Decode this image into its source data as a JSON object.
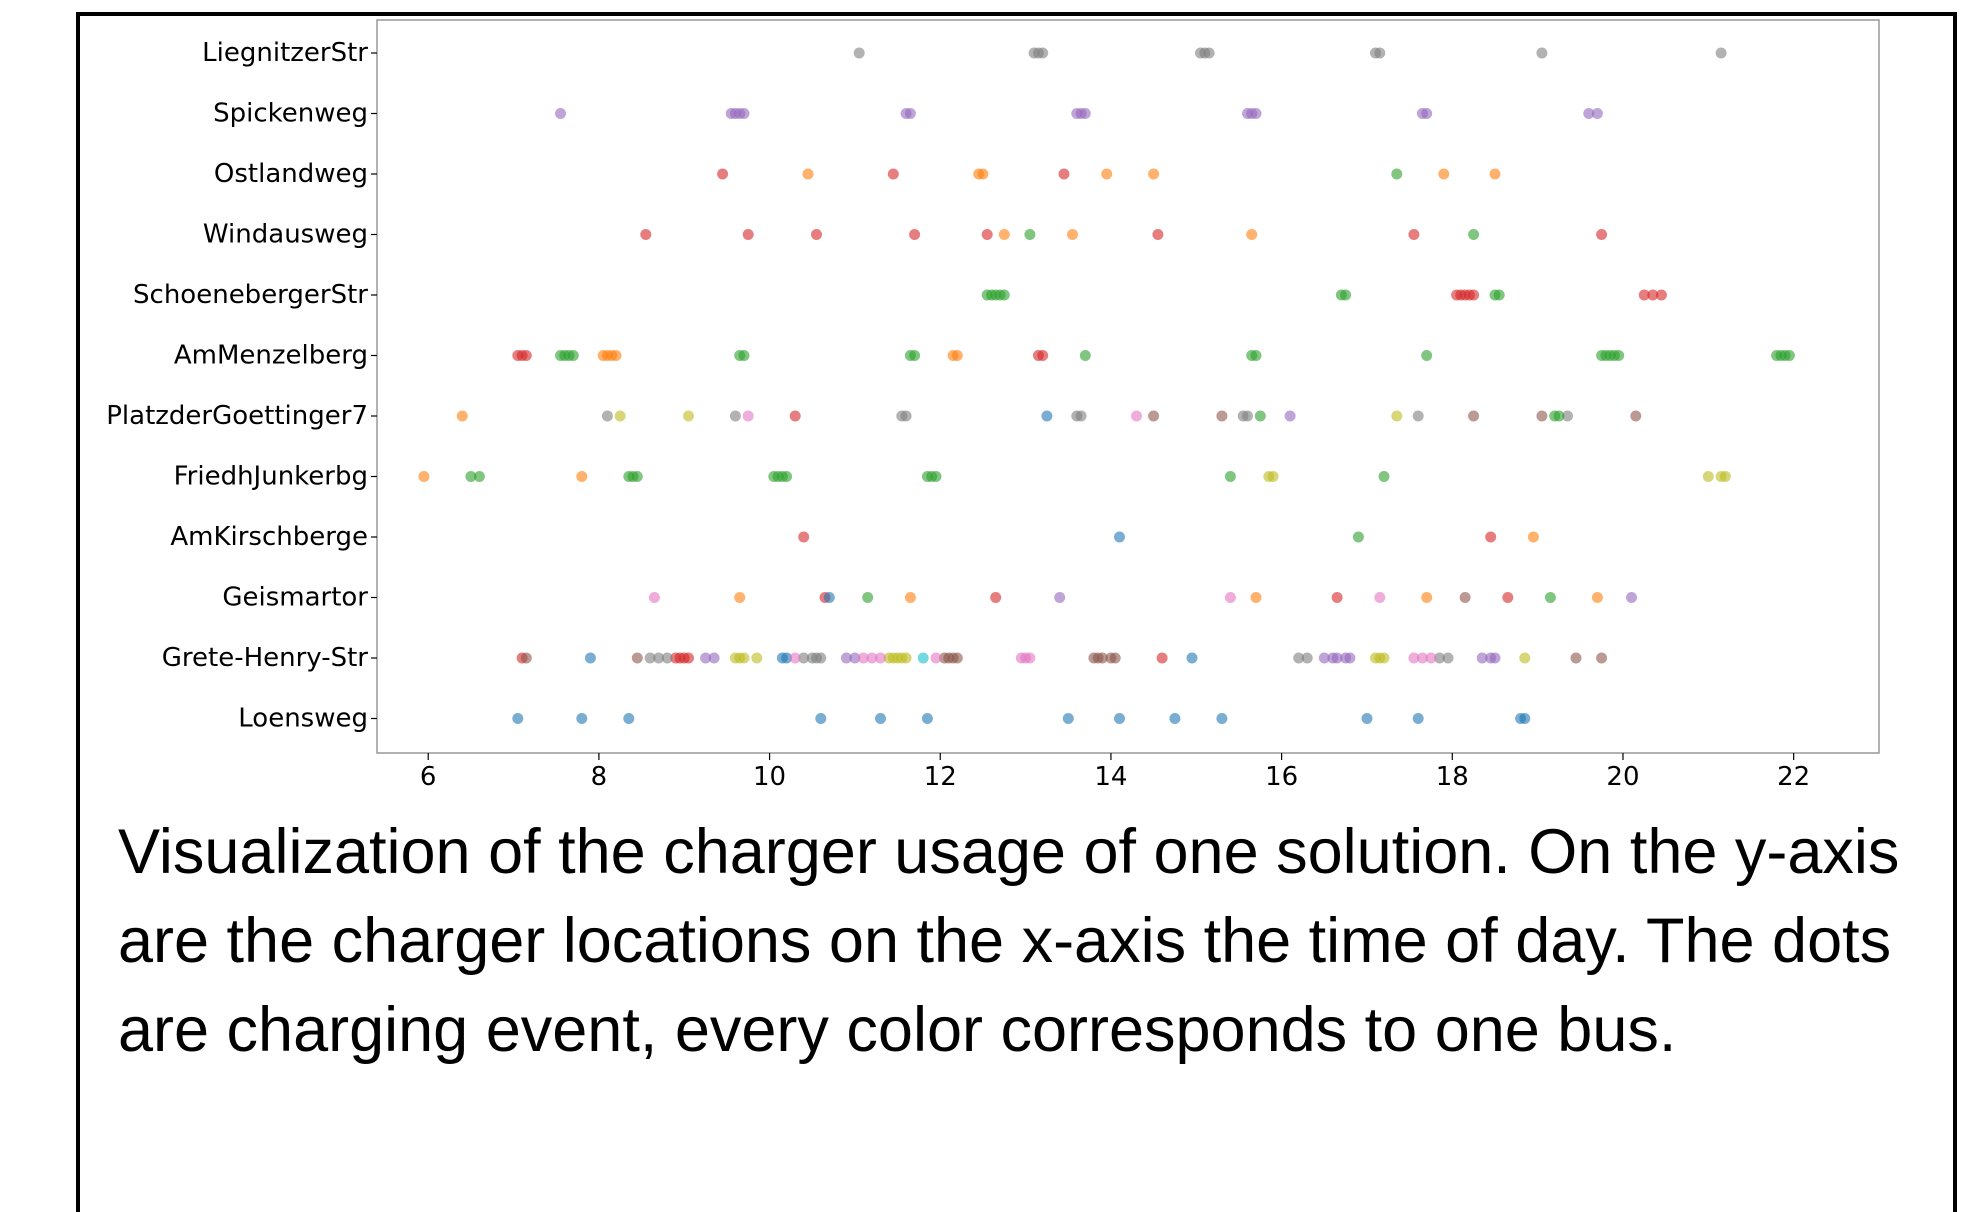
{
  "caption": "Visualization of the charger usage of one solution. On the y-axis are the charger locations on the x-axis the time of day. The dots are charging event, every color corresponds to one bus.",
  "chart_data": {
    "type": "scatter",
    "title": "",
    "xlabel": "",
    "ylabel": "",
    "xlim": [
      5.4,
      23.0
    ],
    "x_ticks": [
      "6",
      "8",
      "10",
      "12",
      "14",
      "16",
      "18",
      "20",
      "22"
    ],
    "grid": false,
    "legend": "none",
    "categories": [
      "LiegnitzerStr",
      "Spickenweg",
      "Ostlandweg",
      "Windausweg",
      "SchoenebergerStr",
      "AmMenzelberg",
      "PlatzderGoettinger7",
      "FriedhJunkerbg",
      "AmKirschberge",
      "Geismartor",
      "Grete-Henry-Str",
      "Loensweg"
    ],
    "colors": {
      "blue": "#1f77b4",
      "orange": "#ff7f0e",
      "green": "#2ca02c",
      "red": "#d62728",
      "purple": "#9467bd",
      "brown": "#8c564b",
      "pink": "#e377c2",
      "gray": "#7f7f7f",
      "olive": "#bcbd22",
      "cyan": "#17becf"
    },
    "points": [
      {
        "y": "LiegnitzerStr",
        "x": [
          11.05,
          13.1,
          13.15,
          13.2,
          15.05,
          15.1,
          15.15,
          17.1,
          17.15,
          19.05,
          21.15
        ],
        "color": "gray"
      },
      {
        "y": "Spickenweg",
        "x": [
          7.55,
          9.55,
          9.6,
          9.65,
          9.7,
          11.6,
          11.65,
          13.6,
          13.65,
          13.7,
          15.6,
          15.65,
          15.7,
          17.65,
          17.7,
          19.6,
          19.7
        ],
        "color": "purple"
      },
      {
        "y": "Ostlandweg",
        "x": [
          9.45,
          11.45,
          13.45
        ],
        "color": "red"
      },
      {
        "y": "Ostlandweg",
        "x": [
          10.45,
          12.45,
          12.5,
          13.95,
          14.5,
          17.9,
          18.5
        ],
        "color": "orange"
      },
      {
        "y": "Ostlandweg",
        "x": [
          17.35
        ],
        "color": "green"
      },
      {
        "y": "Windausweg",
        "x": [
          8.55,
          9.75,
          10.55,
          11.7,
          12.55,
          14.55,
          17.55,
          19.75
        ],
        "color": "red"
      },
      {
        "y": "Windausweg",
        "x": [
          12.75,
          13.55,
          15.65
        ],
        "color": "orange"
      },
      {
        "y": "Windausweg",
        "x": [
          13.05,
          18.25
        ],
        "color": "green"
      },
      {
        "y": "SchoenebergerStr",
        "x": [
          12.55,
          12.6,
          12.65,
          12.7,
          12.75,
          16.7,
          16.75,
          18.5,
          18.55
        ],
        "color": "green"
      },
      {
        "y": "SchoenebergerStr",
        "x": [
          18.05,
          18.1,
          18.15,
          18.2,
          18.25,
          20.25,
          20.35,
          20.45
        ],
        "color": "red"
      },
      {
        "y": "AmMenzelberg",
        "x": [
          7.05,
          7.1,
          7.15,
          13.15,
          13.2
        ],
        "color": "red"
      },
      {
        "y": "AmMenzelberg",
        "x": [
          7.55,
          7.6,
          7.65,
          7.7,
          9.65,
          9.7,
          11.65,
          11.7,
          13.7,
          15.65,
          15.7,
          17.7,
          19.75,
          19.8,
          19.85,
          19.9,
          19.95,
          21.8,
          21.85,
          21.9,
          21.95
        ],
        "color": "green"
      },
      {
        "y": "AmMenzelberg",
        "x": [
          8.05,
          8.1,
          8.15,
          8.2,
          12.15,
          12.2
        ],
        "color": "orange"
      },
      {
        "y": "PlatzderGoettinger7",
        "x": [
          6.4
        ],
        "color": "orange"
      },
      {
        "y": "PlatzderGoettinger7",
        "x": [
          8.1,
          9.6,
          11.55,
          11.6,
          13.6,
          13.65,
          15.55,
          15.6,
          17.6,
          19.35
        ],
        "color": "gray"
      },
      {
        "y": "PlatzderGoettinger7",
        "x": [
          8.25,
          9.05,
          17.35
        ],
        "color": "olive"
      },
      {
        "y": "PlatzderGoettinger7",
        "x": [
          9.75,
          14.3
        ],
        "color": "pink"
      },
      {
        "y": "PlatzderGoettinger7",
        "x": [
          10.3
        ],
        "color": "red"
      },
      {
        "y": "PlatzderGoettinger7",
        "x": [
          13.25
        ],
        "color": "blue"
      },
      {
        "y": "PlatzderGoettinger7",
        "x": [
          14.5,
          15.3,
          18.25,
          19.05,
          20.15
        ],
        "color": "brown"
      },
      {
        "y": "PlatzderGoettinger7",
        "x": [
          15.75,
          19.2,
          19.25
        ],
        "color": "green"
      },
      {
        "y": "PlatzderGoettinger7",
        "x": [
          16.1
        ],
        "color": "purple"
      },
      {
        "y": "FriedhJunkerbg",
        "x": [
          5.95,
          7.8
        ],
        "color": "orange"
      },
      {
        "y": "FriedhJunkerbg",
        "x": [
          6.5,
          6.6,
          8.35,
          8.4,
          8.45,
          10.05,
          10.1,
          10.15,
          10.2,
          11.85,
          11.9,
          11.95,
          15.4,
          17.2
        ],
        "color": "green"
      },
      {
        "y": "FriedhJunkerbg",
        "x": [
          15.85,
          15.9,
          21.0,
          21.15,
          21.2
        ],
        "color": "olive"
      },
      {
        "y": "AmKirschberge",
        "x": [
          10.4,
          18.45
        ],
        "color": "red"
      },
      {
        "y": "AmKirschberge",
        "x": [
          14.1
        ],
        "color": "blue"
      },
      {
        "y": "AmKirschberge",
        "x": [
          16.9
        ],
        "color": "green"
      },
      {
        "y": "AmKirschberge",
        "x": [
          18.95
        ],
        "color": "orange"
      },
      {
        "y": "Geismartor",
        "x": [
          8.65,
          15.4,
          17.15
        ],
        "color": "pink"
      },
      {
        "y": "Geismartor",
        "x": [
          9.65,
          11.65,
          15.7,
          17.7,
          19.7
        ],
        "color": "orange"
      },
      {
        "y": "Geismartor",
        "x": [
          10.65,
          12.65,
          16.65,
          18.65
        ],
        "color": "red"
      },
      {
        "y": "Geismartor",
        "x": [
          10.7
        ],
        "color": "blue"
      },
      {
        "y": "Geismartor",
        "x": [
          11.15,
          19.15
        ],
        "color": "green"
      },
      {
        "y": "Geismartor",
        "x": [
          13.4,
          20.1
        ],
        "color": "purple"
      },
      {
        "y": "Geismartor",
        "x": [
          18.15
        ],
        "color": "brown"
      },
      {
        "y": "Grete-Henry-Str",
        "x": [
          7.1,
          8.9,
          8.95,
          9.0,
          9.05,
          14.6
        ],
        "color": "red"
      },
      {
        "y": "Grete-Henry-Str",
        "x": [
          7.15,
          8.45,
          12.05,
          12.1,
          12.15,
          12.2,
          13.8,
          13.85,
          13.9,
          14.0,
          14.05,
          19.45,
          19.75
        ],
        "color": "brown"
      },
      {
        "y": "Grete-Henry-Str",
        "x": [
          7.9,
          10.15,
          10.2,
          14.95
        ],
        "color": "blue"
      },
      {
        "y": "Grete-Henry-Str",
        "x": [
          8.6,
          8.7,
          8.8,
          10.4,
          10.5,
          10.55,
          10.6,
          16.2,
          16.3,
          17.85,
          17.95
        ],
        "color": "gray"
      },
      {
        "y": "Grete-Henry-Str",
        "x": [
          9.25,
          9.35,
          10.9,
          11.0,
          16.5,
          16.6,
          16.65,
          16.75,
          16.8,
          18.35,
          18.45,
          18.5
        ],
        "color": "purple"
      },
      {
        "y": "Grete-Henry-Str",
        "x": [
          9.6,
          9.65,
          9.7,
          9.85,
          11.4,
          11.45,
          11.5,
          11.55,
          11.6,
          17.1,
          17.15,
          17.2,
          18.85
        ],
        "color": "olive"
      },
      {
        "y": "Grete-Henry-Str",
        "x": [
          10.3,
          11.1,
          11.2,
          11.3,
          11.95,
          12.95,
          13.0,
          13.05,
          17.55,
          17.65,
          17.75
        ],
        "color": "pink"
      },
      {
        "y": "Grete-Henry-Str",
        "x": [
          11.8
        ],
        "color": "cyan"
      },
      {
        "y": "Loensweg",
        "x": [
          7.05,
          7.8,
          8.35,
          10.6,
          11.3,
          11.85,
          13.5,
          14.1,
          14.75,
          15.3,
          17.0,
          17.6,
          18.8,
          18.85
        ],
        "color": "blue"
      }
    ]
  }
}
